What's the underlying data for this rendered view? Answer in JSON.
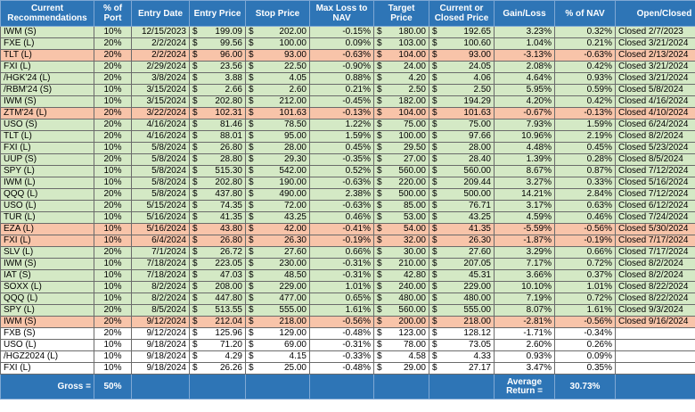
{
  "columns": [
    "Current Recommendations",
    "% of Port",
    "Entry Date",
    "Entry Price",
    "Stop Price",
    "Max Loss to NAV",
    "Target Price",
    "Current or Closed Price",
    "Gain/Loss",
    "% of NAV",
    "Open/Closed"
  ],
  "currency_symbol": "$",
  "row_colors": {
    "green": "#d4e9c5",
    "red": "#f8c4a9",
    "open": "#ffffff",
    "header": "#2e75b6"
  },
  "rows": [
    {
      "status": "green",
      "rec": "IWM (S)",
      "port": "10%",
      "date": "12/15/2023",
      "entry": "199.09",
      "stop": "202.00",
      "maxloss": "-0.15%",
      "target": "180.00",
      "current": "192.65",
      "gain": "3.23%",
      "nav": "0.32%",
      "oc": "Closed 2/7/2023"
    },
    {
      "status": "green",
      "rec": "FXE (L)",
      "port": "20%",
      "date": "2/2/2024",
      "entry": "99.56",
      "stop": "100.00",
      "maxloss": "0.09%",
      "target": "103.00",
      "current": "100.60",
      "gain": "1.04%",
      "nav": "0.21%",
      "oc": "Closed 3/21/2024"
    },
    {
      "status": "red",
      "rec": "TLT (L)",
      "port": "20%",
      "date": "2/2/2024",
      "entry": "96.00",
      "stop": "93.00",
      "maxloss": "-0.63%",
      "target": "104.00",
      "current": "93.00",
      "gain": "-3.13%",
      "nav": "-0.63%",
      "oc": "Closed 2/13/2024"
    },
    {
      "status": "green",
      "rec": "FXI (L)",
      "port": "20%",
      "date": "2/29/2024",
      "entry": "23.56",
      "stop": "22.50",
      "maxloss": "-0.90%",
      "target": "24.00",
      "current": "24.05",
      "gain": "2.08%",
      "nav": "0.42%",
      "oc": "Closed 3/21/2024"
    },
    {
      "status": "green",
      "rec": "/HGK'24 (L)",
      "port": "20%",
      "date": "3/8/2024",
      "entry": "3.88",
      "stop": "4.05",
      "maxloss": "0.88%",
      "target": "4.20",
      "current": "4.06",
      "gain": "4.64%",
      "nav": "0.93%",
      "oc": "Closed 3/21/2024"
    },
    {
      "status": "green",
      "rec": "/RBM'24 (S)",
      "port": "10%",
      "date": "3/15/2024",
      "entry": "2.66",
      "stop": "2.60",
      "maxloss": "0.21%",
      "target": "2.50",
      "current": "2.50",
      "gain": "5.95%",
      "nav": "0.59%",
      "oc": "Closed 5/8/2024"
    },
    {
      "status": "green",
      "rec": "IWM (S)",
      "port": "10%",
      "date": "3/15/2024",
      "entry": "202.80",
      "stop": "212.00",
      "maxloss": "-0.45%",
      "target": "182.00",
      "current": "194.29",
      "gain": "4.20%",
      "nav": "0.42%",
      "oc": "Closed 4/16/2024"
    },
    {
      "status": "red",
      "rec": "ZTM'24 (L)",
      "port": "20%",
      "date": "3/22/2024",
      "entry": "102.31",
      "stop": "101.63",
      "maxloss": "-0.13%",
      "target": "104.00",
      "current": "101.63",
      "gain": "-0.67%",
      "nav": "-0.13%",
      "oc": "Closed 4/10/2024"
    },
    {
      "status": "green",
      "rec": "USO (S)",
      "port": "20%",
      "date": "4/16/2024",
      "entry": "81.46",
      "stop": "78.50",
      "maxloss": "1.22%",
      "target": "75.00",
      "current": "75.00",
      "gain": "7.93%",
      "nav": "1.59%",
      "oc": "Closed 6/24/2024"
    },
    {
      "status": "green",
      "rec": "TLT (L)",
      "port": "20%",
      "date": "4/16/2024",
      "entry": "88.01",
      "stop": "95.00",
      "maxloss": "1.59%",
      "target": "100.00",
      "current": "97.66",
      "gain": "10.96%",
      "nav": "2.19%",
      "oc": "Closed 8/2/2024"
    },
    {
      "status": "green",
      "rec": "FXI (L)",
      "port": "10%",
      "date": "5/8/2024",
      "entry": "26.80",
      "stop": "28.00",
      "maxloss": "0.45%",
      "target": "29.50",
      "current": "28.00",
      "gain": "4.48%",
      "nav": "0.45%",
      "oc": "Closed 5/23/2024"
    },
    {
      "status": "green",
      "rec": "UUP (S)",
      "port": "20%",
      "date": "5/8/2024",
      "entry": "28.80",
      "stop": "29.30",
      "maxloss": "-0.35%",
      "target": "27.00",
      "current": "28.40",
      "gain": "1.39%",
      "nav": "0.28%",
      "oc": "Closed 8/5/2024"
    },
    {
      "status": "green",
      "rec": "SPY (L)",
      "port": "10%",
      "date": "5/8/2024",
      "entry": "515.30",
      "stop": "542.00",
      "maxloss": "0.52%",
      "target": "560.00",
      "current": "560.00",
      "gain": "8.67%",
      "nav": "0.87%",
      "oc": "Closed 7/12/2024"
    },
    {
      "status": "green",
      "rec": "IWM (L)",
      "port": "10%",
      "date": "5/8/2024",
      "entry": "202.80",
      "stop": "190.00",
      "maxloss": "-0.63%",
      "target": "220.00",
      "current": "209.44",
      "gain": "3.27%",
      "nav": "0.33%",
      "oc": "Closed 5/16/2024"
    },
    {
      "status": "green",
      "rec": "QQQ (L)",
      "port": "20%",
      "date": "5/8/2024",
      "entry": "437.80",
      "stop": "490.00",
      "maxloss": "2.38%",
      "target": "500.00",
      "current": "500.00",
      "gain": "14.21%",
      "nav": "2.84%",
      "oc": "Closed 7/12/2024"
    },
    {
      "status": "green",
      "rec": "USO (L)",
      "port": "20%",
      "date": "5/15/2024",
      "entry": "74.35",
      "stop": "72.00",
      "maxloss": "-0.63%",
      "target": "85.00",
      "current": "76.71",
      "gain": "3.17%",
      "nav": "0.63%",
      "oc": "Closed 6/12/2024"
    },
    {
      "status": "green",
      "rec": "TUR (L)",
      "port": "10%",
      "date": "5/16/2024",
      "entry": "41.35",
      "stop": "43.25",
      "maxloss": "0.46%",
      "target": "53.00",
      "current": "43.25",
      "gain": "4.59%",
      "nav": "0.46%",
      "oc": "Closed 7/24/2024"
    },
    {
      "status": "red",
      "rec": "EZA (L)",
      "port": "10%",
      "date": "5/16/2024",
      "entry": "43.80",
      "stop": "42.00",
      "maxloss": "-0.41%",
      "target": "54.00",
      "current": "41.35",
      "gain": "-5.59%",
      "nav": "-0.56%",
      "oc": "Closed 5/30/2024"
    },
    {
      "status": "red",
      "rec": "FXI (L)",
      "port": "10%",
      "date": "6/4/2024",
      "entry": "26.80",
      "stop": "26.30",
      "maxloss": "-0.19%",
      "target": "32.00",
      "current": "26.30",
      "gain": "-1.87%",
      "nav": "-0.19%",
      "oc": "Closed 7/17/2024"
    },
    {
      "status": "green",
      "rec": "SLV (L)",
      "port": "20%",
      "date": "7/1/2024",
      "entry": "26.72",
      "stop": "27.60",
      "maxloss": "0.66%",
      "target": "30.00",
      "current": "27.60",
      "gain": "3.29%",
      "nav": "0.66%",
      "oc": "Closed 7/17/2024"
    },
    {
      "status": "green",
      "rec": "IWM (S)",
      "port": "10%",
      "date": "7/18/2024",
      "entry": "223.05",
      "stop": "230.00",
      "maxloss": "-0.31%",
      "target": "210.00",
      "current": "207.05",
      "gain": "7.17%",
      "nav": "0.72%",
      "oc": "Closed 8/2/2024"
    },
    {
      "status": "green",
      "rec": "IAT (S)",
      "port": "10%",
      "date": "7/18/2024",
      "entry": "47.03",
      "stop": "48.50",
      "maxloss": "-0.31%",
      "target": "42.80",
      "current": "45.31",
      "gain": "3.66%",
      "nav": "0.37%",
      "oc": "Closed 8/2/2024"
    },
    {
      "status": "green",
      "rec": "SOXX (L)",
      "port": "10%",
      "date": "8/2/2024",
      "entry": "208.00",
      "stop": "229.00",
      "maxloss": "1.01%",
      "target": "240.00",
      "current": "229.00",
      "gain": "10.10%",
      "nav": "1.01%",
      "oc": "Closed 8/22/2024"
    },
    {
      "status": "green",
      "rec": "QQQ (L)",
      "port": "10%",
      "date": "8/2/2024",
      "entry": "447.80",
      "stop": "477.00",
      "maxloss": "0.65%",
      "target": "480.00",
      "current": "480.00",
      "gain": "7.19%",
      "nav": "0.72%",
      "oc": "Closed 8/22/2024"
    },
    {
      "status": "green",
      "rec": "SPY (L)",
      "port": "20%",
      "date": "8/5/2024",
      "entry": "513.55",
      "stop": "555.00",
      "maxloss": "1.61%",
      "target": "560.00",
      "current": "555.00",
      "gain": "8.07%",
      "nav": "1.61%",
      "oc": "Closed 9/3/2024"
    },
    {
      "status": "red",
      "rec": "IWM (S)",
      "port": "20%",
      "date": "9/12/2024",
      "entry": "212.04",
      "stop": "218.00",
      "maxloss": "-0.56%",
      "target": "200.00",
      "current": "218.00",
      "gain": "-2.81%",
      "nav": "-0.56%",
      "oc": "Closed 9/16/2024"
    },
    {
      "status": "open",
      "rec": "FXB (S)",
      "port": "20%",
      "date": "9/12/2024",
      "entry": "125.96",
      "stop": "129.00",
      "maxloss": "-0.48%",
      "target": "123.00",
      "current": "128.12",
      "gain": "-1.71%",
      "nav": "-0.34%",
      "oc": ""
    },
    {
      "status": "open",
      "rec": "USO (L)",
      "port": "10%",
      "date": "9/18/2024",
      "entry": "71.20",
      "stop": "69.00",
      "maxloss": "-0.31%",
      "target": "78.00",
      "current": "73.05",
      "gain": "2.60%",
      "nav": "0.26%",
      "oc": ""
    },
    {
      "status": "open",
      "rec": "/HGZ2024 (L)",
      "port": "10%",
      "date": "9/18/2024",
      "entry": "4.29",
      "stop": "4.15",
      "maxloss": "-0.33%",
      "target": "4.58",
      "current": "4.33",
      "gain": "0.93%",
      "nav": "0.09%",
      "oc": ""
    },
    {
      "status": "open",
      "rec": "FXI (L)",
      "port": "10%",
      "date": "9/18/2024",
      "entry": "26.26",
      "stop": "25.00",
      "maxloss": "-0.48%",
      "target": "29.00",
      "current": "27.17",
      "gain": "3.47%",
      "nav": "0.35%",
      "oc": ""
    }
  ],
  "footer": {
    "gross_label": "Gross =",
    "gross_value": "50%",
    "avg_label": "Average Return =",
    "avg_value": "30.73%"
  }
}
